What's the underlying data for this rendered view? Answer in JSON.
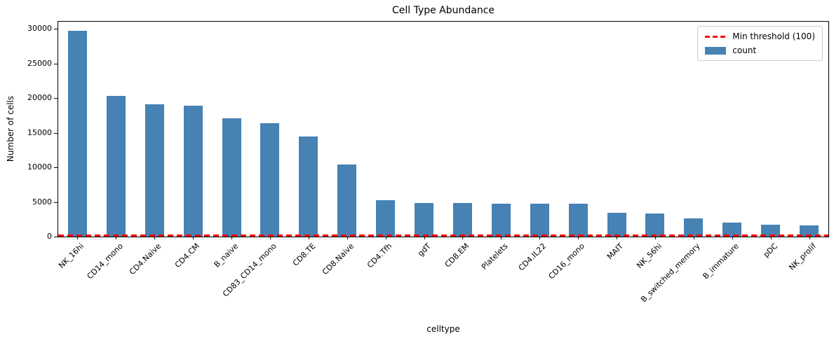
{
  "chart_data": {
    "type": "bar",
    "title": "Cell Type Abundance",
    "xlabel": "celltype",
    "ylabel": "Number of cells",
    "categories": [
      "NK_16hi",
      "CD14_mono",
      "CD4.Naive",
      "CD4.CM",
      "B_naive",
      "CD83_CD14_mono",
      "CD8.TE",
      "CD8.Naive",
      "CD4.Tfh",
      "gdT",
      "CD8.EM",
      "Platelets",
      "CD4.IL22",
      "CD16_mono",
      "MAIT",
      "NK_56hi",
      "B_switched_memory",
      "B_immature",
      "pDC",
      "NK_prolif"
    ],
    "values": [
      29700,
      20300,
      19100,
      18900,
      17100,
      16400,
      14400,
      10400,
      5250,
      4900,
      4800,
      4750,
      4750,
      4750,
      3400,
      3300,
      2600,
      2050,
      1700,
      1650
    ],
    "series_name": "count",
    "yticks": [
      0,
      5000,
      10000,
      15000,
      20000,
      25000,
      30000
    ],
    "ylim": [
      0,
      31000
    ],
    "bar_color": "#4682b4",
    "grid": false,
    "threshold_line": {
      "value": 100,
      "color": "#ff0000",
      "style": "dashed"
    },
    "legend": {
      "position": "upper-right",
      "entries": [
        {
          "label": "Min threshold (100)",
          "marker": "dashed-line",
          "color": "#ff0000"
        },
        {
          "label": "count",
          "marker": "patch",
          "color": "#4682b4"
        }
      ]
    }
  }
}
